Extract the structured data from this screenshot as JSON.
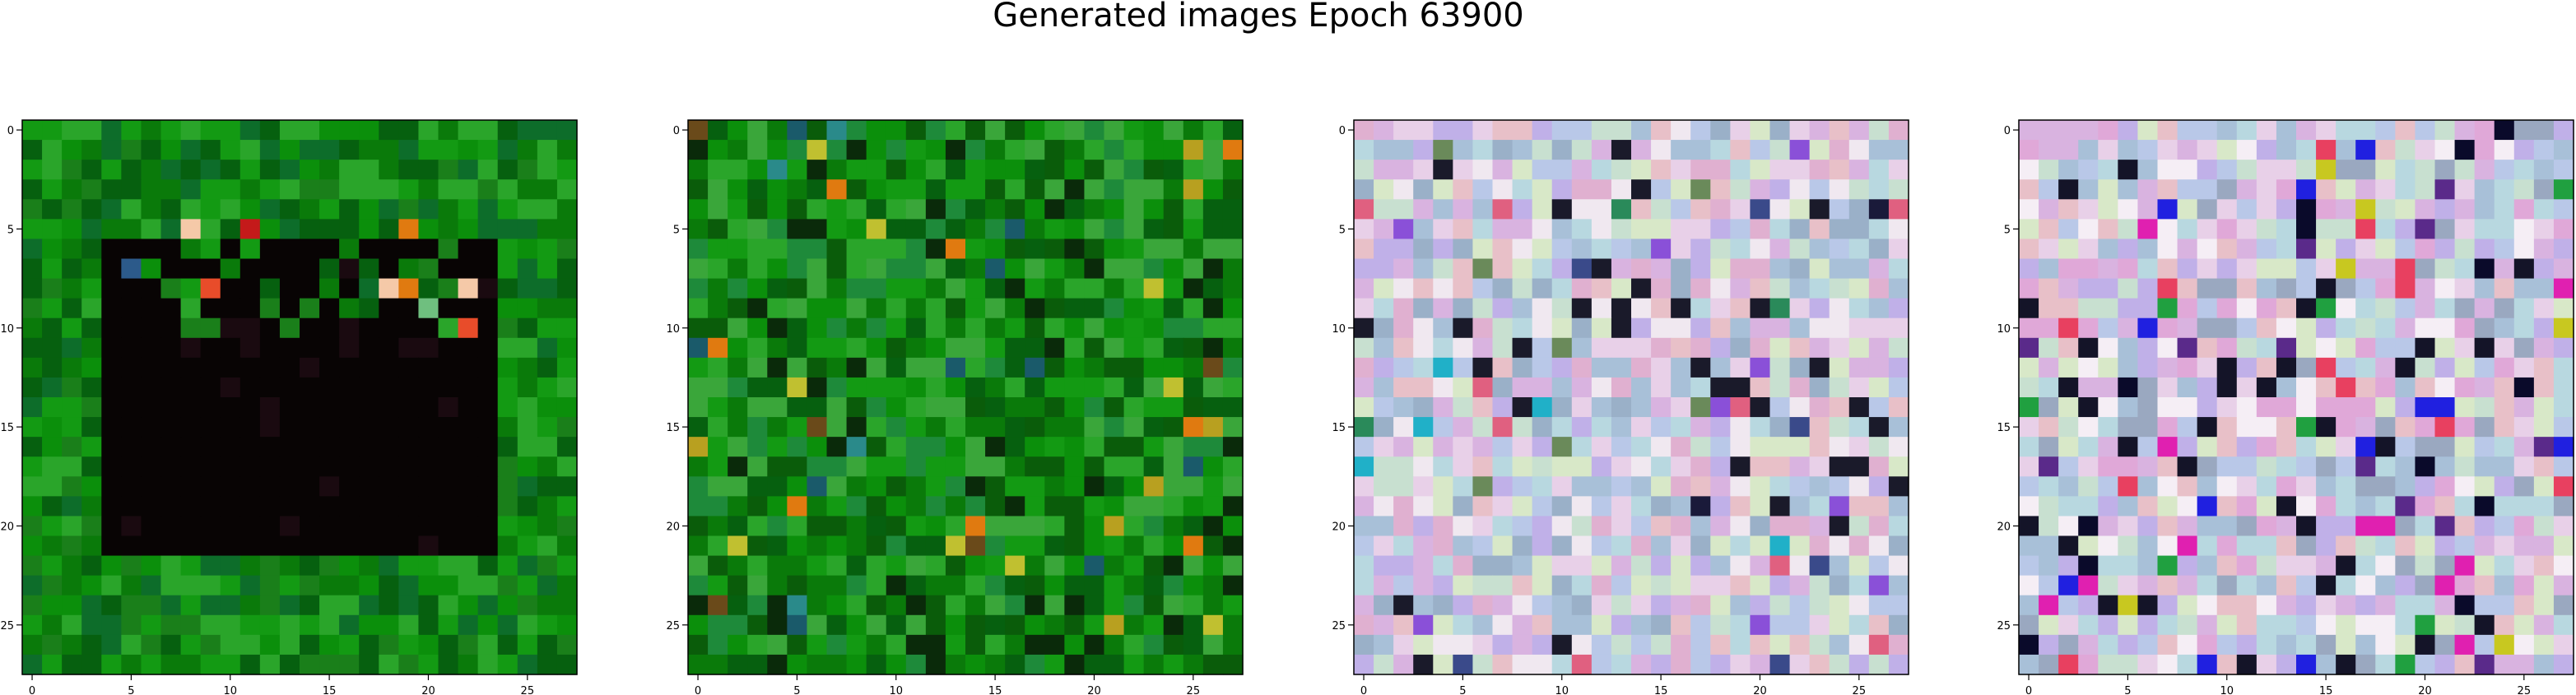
{
  "figure": {
    "title": "Generated images Epoch 63900"
  },
  "chart_data": [
    {
      "type": "heatmap",
      "title": "",
      "grid_size": [
        28,
        28
      ],
      "xticks": [
        0,
        5,
        10,
        15,
        20,
        25
      ],
      "yticks": [
        0,
        5,
        10,
        15,
        20,
        25
      ],
      "xlim": [
        -0.5,
        27.5
      ],
      "ylim": [
        27.5,
        -0.5
      ],
      "style": "green-field-dark-square",
      "palette": [
        "#0a7a0a",
        "#0b8f0b",
        "#06600f",
        "#139a13",
        "#2aa52a",
        "#0d6d2a",
        "#1a7f1a"
      ],
      "dark_color": "#080404",
      "accent_colors": [
        "#e07a10",
        "#f5c9a8",
        "#e84c2a",
        "#c41a1a",
        "#6fbf7f",
        "#2c5a8a",
        "#3a0a5a"
      ],
      "seed": 11
    },
    {
      "type": "heatmap",
      "title": "",
      "grid_size": [
        28,
        28
      ],
      "xticks": [
        0,
        5,
        10,
        15,
        20,
        25
      ],
      "yticks": [
        0,
        5,
        10,
        15,
        20,
        25
      ],
      "xlim": [
        -0.5,
        27.5
      ],
      "ylim": [
        27.5,
        -0.5
      ],
      "style": "green-noise",
      "palette": [
        "#0a7a0a",
        "#0b8f0b",
        "#06600f",
        "#139a13",
        "#2aa52a",
        "#1e8a3a",
        "#0a5c0a",
        "#3aa63a"
      ],
      "dark_color": "#0a2a0a",
      "accent_colors": [
        "#b8a020",
        "#e07a10",
        "#2a8a8a",
        "#6a4a1a",
        "#c0c030",
        "#1a5a6a"
      ],
      "seed": 23
    },
    {
      "type": "heatmap",
      "title": "",
      "grid_size": [
        28,
        28
      ],
      "xticks": [
        0,
        5,
        10,
        15,
        20,
        25
      ],
      "yticks": [
        0,
        5,
        10,
        15,
        20,
        25
      ],
      "xlim": [
        -0.5,
        27.5
      ],
      "ylim": [
        27.5,
        -0.5
      ],
      "style": "pastel-noise",
      "palette": [
        "#d9b3e0",
        "#b9c8e8",
        "#e8d0e8",
        "#c8e0d0",
        "#f0e8f0",
        "#a8c0d8",
        "#e0b0d0",
        "#c0b0e8",
        "#d8e8c8",
        "#b8d8e0",
        "#9ab0c8",
        "#e8c0c8"
      ],
      "dark_color": "#1a1a2a",
      "accent_colors": [
        "#2a8a5a",
        "#3a4a8a",
        "#8a50d8",
        "#20b0c8",
        "#e06080",
        "#6a8a5a",
        "#1a1a3a"
      ],
      "seed": 37
    },
    {
      "type": "heatmap",
      "title": "",
      "grid_size": [
        28,
        28
      ],
      "xticks": [
        0,
        5,
        10,
        15,
        20,
        25
      ],
      "yticks": [
        0,
        5,
        10,
        15,
        20,
        25
      ],
      "xlim": [
        -0.5,
        27.5
      ],
      "ylim": [
        27.5,
        -0.5
      ],
      "style": "pastel-noise-vivid",
      "palette": [
        "#d9b3e0",
        "#b9c8e8",
        "#e8d0e8",
        "#c8e0d0",
        "#f5eef5",
        "#a8c0d8",
        "#e0a8d8",
        "#c0b0e8",
        "#d8e8c8",
        "#b8d8e0",
        "#9aa8c0",
        "#e8c0c8"
      ],
      "dark_color": "#141428",
      "accent_colors": [
        "#2020e0",
        "#e020b0",
        "#20a040",
        "#5a2a8a",
        "#e84060",
        "#c8c820",
        "#0a0a2a"
      ],
      "seed": 53
    }
  ]
}
